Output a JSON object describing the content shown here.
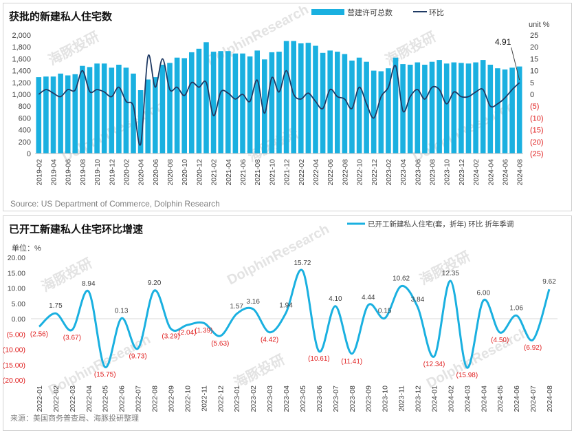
{
  "charts": [
    {
      "title": "获批的新建私人住宅数",
      "source": "Source: US Department of Commerce, Dolphin Research",
      "legend": [
        "营建许可总数",
        "环比"
      ],
      "right_axis_unit": "unit %",
      "callout": "4.91",
      "watermark": [
        "海豚投研",
        "DolphinResearch"
      ]
    },
    {
      "title": "已开工新建私人住宅环比增速",
      "source": "来源：美国商务普查局、海豚投研整理",
      "legend": [
        "已开工新建私人住宅(套，折年) 环比 折年季调"
      ],
      "y_unit": "单位：%",
      "watermark": [
        "海豚投研",
        "DolphinResearch"
      ]
    }
  ],
  "chart_data": [
    {
      "type": "bar+line",
      "title": "获批的新建私人住宅数",
      "left_axis": {
        "ylim": [
          0,
          2000
        ],
        "ticks": [
          "0",
          "200",
          "400",
          "600",
          "800",
          "1,000",
          "1,200",
          "1,400",
          "1,600",
          "1,800",
          "2,000"
        ]
      },
      "right_axis": {
        "ylim": [
          -25,
          25
        ],
        "ticks": [
          "(25)",
          "(20)",
          "(15)",
          "(10)",
          "(5)",
          "0",
          "5",
          "10",
          "15",
          "20",
          "25"
        ],
        "unit": "unit %"
      },
      "x": [
        "2019-02",
        "2019-03",
        "2019-04",
        "2019-05",
        "2019-06",
        "2019-07",
        "2019-08",
        "2019-09",
        "2019-10",
        "2019-11",
        "2019-12",
        "2020-01",
        "2020-02",
        "2020-03",
        "2020-04",
        "2020-05",
        "2020-06",
        "2020-07",
        "2020-08",
        "2020-09",
        "2020-10",
        "2020-11",
        "2020-12",
        "2021-01",
        "2021-02",
        "2021-03",
        "2021-04",
        "2021-05",
        "2021-06",
        "2021-07",
        "2021-08",
        "2021-09",
        "2021-10",
        "2021-11",
        "2021-12",
        "2022-01",
        "2022-02",
        "2022-03",
        "2022-04",
        "2022-05",
        "2022-06",
        "2022-07",
        "2022-08",
        "2022-09",
        "2022-10",
        "2022-11",
        "2022-12",
        "2023-01",
        "2023-02",
        "2023-03",
        "2023-04",
        "2023-05",
        "2023-06",
        "2023-07",
        "2023-08",
        "2023-09",
        "2023-10",
        "2023-11",
        "2023-12",
        "2024-01",
        "2024-02",
        "2024-03",
        "2024-04",
        "2024-05",
        "2024-06",
        "2024-07",
        "2024-08"
      ],
      "tick_labels": [
        "2019-02",
        "2019-04",
        "2019-06",
        "2019-08",
        "2019-10",
        "2019-12",
        "2020-02",
        "2020-04",
        "2020-06",
        "2020-08",
        "2020-10",
        "2020-12",
        "2021-02",
        "2021-04",
        "2021-06",
        "2021-08",
        "2021-10",
        "2021-12",
        "2022-02",
        "2022-04",
        "2022-06",
        "2022-08",
        "2022-10",
        "2022-12",
        "2023-02",
        "2023-04",
        "2023-06",
        "2023-08",
        "2023-10",
        "2023-12",
        "2024-02",
        "2024-04",
        "2024-06",
        "2024-08"
      ],
      "series": [
        {
          "name": "营建许可总数",
          "type": "bar",
          "color": "#1ab0e0",
          "values": [
            1290,
            1300,
            1300,
            1350,
            1320,
            1340,
            1480,
            1460,
            1520,
            1520,
            1450,
            1500,
            1450,
            1350,
            1070,
            1250,
            1290,
            1500,
            1530,
            1620,
            1610,
            1710,
            1770,
            1880,
            1720,
            1730,
            1730,
            1690,
            1690,
            1640,
            1740,
            1590,
            1710,
            1720,
            1900,
            1900,
            1860,
            1870,
            1820,
            1700,
            1740,
            1720,
            1680,
            1570,
            1620,
            1550,
            1400,
            1390,
            1440,
            1620,
            1510,
            1500,
            1540,
            1500,
            1550,
            1580,
            1520,
            1540,
            1530,
            1520,
            1540,
            1580,
            1500,
            1440,
            1420,
            1450,
            1470
          ]
        },
        {
          "name": "环比",
          "type": "line",
          "color": "#1f3a64",
          "values": [
            0,
            2,
            0.5,
            -1,
            2,
            1.8,
            10,
            1.2,
            2,
            1,
            -1,
            3,
            -3,
            -5,
            -21,
            16,
            3,
            15,
            2,
            3,
            -0.5,
            5,
            3,
            5,
            -9,
            1,
            0.5,
            -2,
            0,
            -3,
            6,
            -8,
            7,
            1,
            10,
            0,
            -2,
            0.5,
            -3,
            -6,
            2,
            -1,
            -2,
            -6,
            3,
            -4,
            -10,
            -1,
            3,
            12,
            -7,
            -1,
            2,
            -2,
            3,
            2,
            -4,
            1,
            -1,
            -1,
            1,
            2,
            -5,
            -4,
            -1.5,
            2,
            4.91
          ]
        }
      ],
      "annotations": [
        {
          "x": "2024-08",
          "label": "4.91"
        }
      ]
    },
    {
      "type": "line",
      "title": "已开工新建私人住宅环比增速",
      "y_unit": "单位：%",
      "ylim": [
        -20,
        20
      ],
      "y_ticks": [
        "20.00",
        "15.00",
        "10.00",
        "5.00",
        "0.00",
        "(5.00)",
        "(10.00)",
        "(15.00)",
        "(20.00)"
      ],
      "categories": [
        "2022-01",
        "2022-02",
        "2022-03",
        "2022-04",
        "2022-05",
        "2022-06",
        "2022-07",
        "2022-08",
        "2022-09",
        "2022-10",
        "2022-11",
        "2022-12",
        "2023-01",
        "2023-02",
        "2023-03",
        "2023-04",
        "2023-05",
        "2023-06",
        "2023-07",
        "2023-08",
        "2023-09",
        "2023-10",
        "2023-11",
        "2023-12",
        "2024-01",
        "2024-02",
        "2024-03",
        "2024-04",
        "2024-05",
        "2024-06",
        "2024-07",
        "2024-08"
      ],
      "series": [
        {
          "name": "已开工新建私人住宅(套，折年) 环比 折年季调",
          "color": "#1ab0e0",
          "values": [
            -2.56,
            1.75,
            -3.67,
            8.94,
            -15.75,
            0.13,
            -9.73,
            9.2,
            -3.29,
            -2.04,
            -1.39,
            -5.63,
            1.57,
            3.16,
            -4.42,
            1.94,
            15.72,
            -10.61,
            4.1,
            -11.41,
            4.44,
            0.15,
            10.62,
            3.84,
            -12.34,
            12.35,
            -15.98,
            6.0,
            -4.5,
            1.06,
            -6.92,
            9.62
          ],
          "labels": [
            "(2.56)",
            "1.75",
            "(3.67)",
            "8.94",
            "(15.75)",
            "0.13",
            "(9.73)",
            "9.20",
            "(3.29)",
            "(2.04)",
            "(1.39)",
            "(5.63)",
            "1.57",
            "3.16",
            "(4.42)",
            "1.94",
            "15.72",
            "(10.61)",
            "4.10",
            "(11.41)",
            "4.44",
            "0.15",
            "10.62",
            "3.84",
            "(12.34)",
            "12.35",
            "(15.98)",
            "6.00",
            "(4.50)",
            "1.06",
            "(6.92)",
            "9.62"
          ]
        }
      ]
    }
  ]
}
